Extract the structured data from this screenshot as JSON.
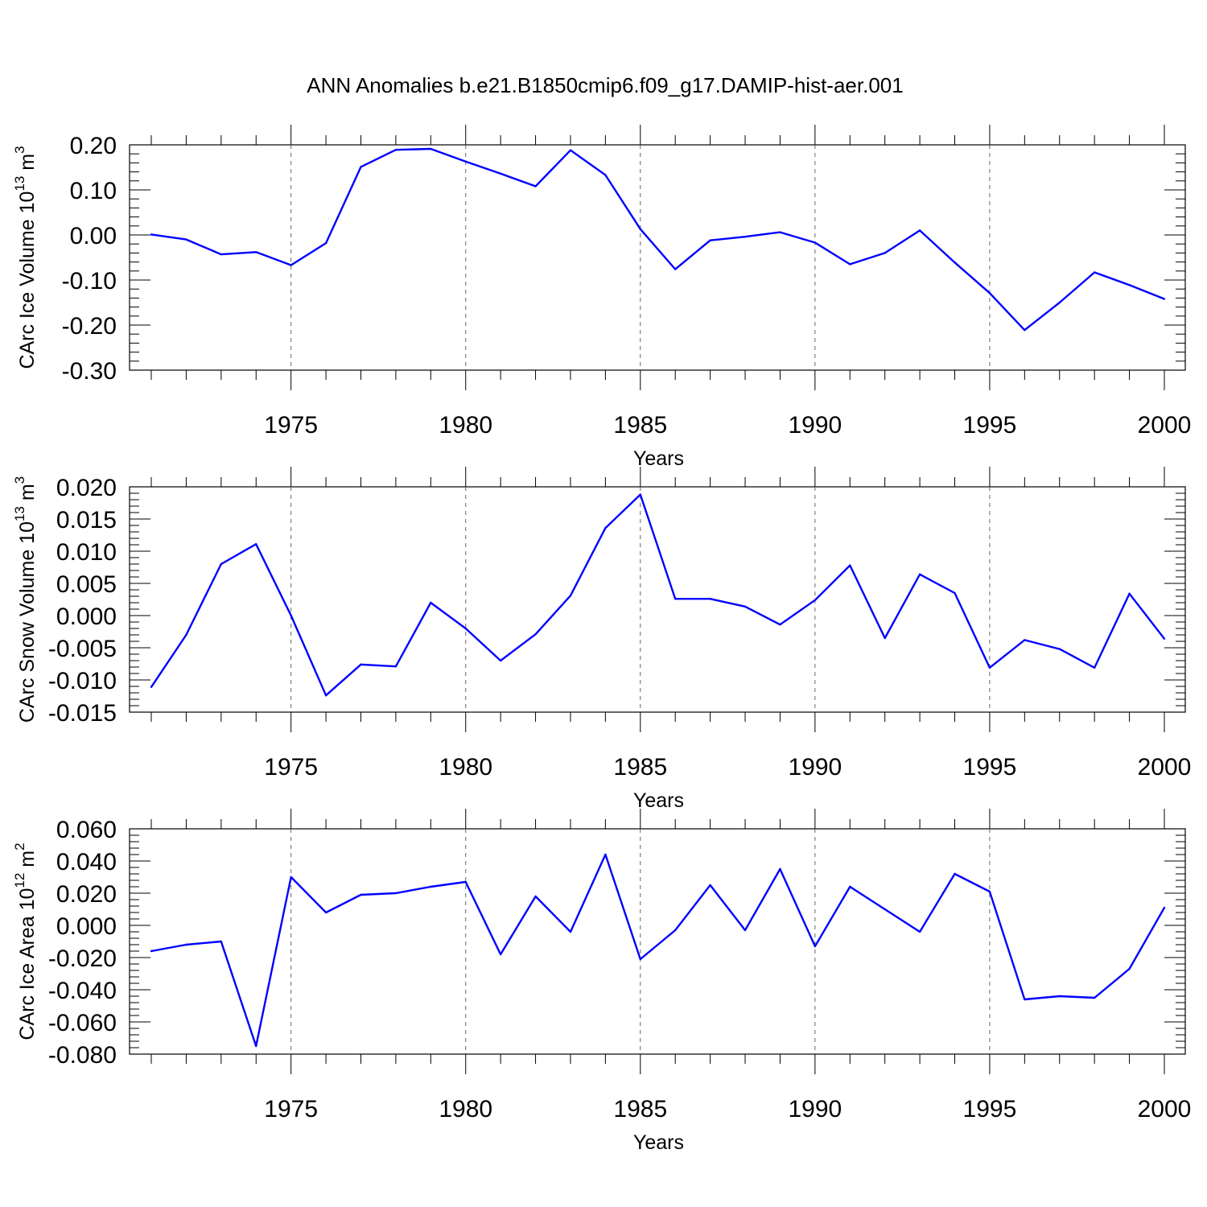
{
  "title": "ANN Anomalies b.e21.B1850cmip6.f09_g17.DAMIP-hist-aer.001",
  "line_color": "#0000ff",
  "chart_data": [
    {
      "type": "line",
      "ylabel": "CArc Ice Volume 10",
      "ylabel_exp": "13",
      "ylabel_unit": " m",
      "ylabel_unit_exp": "3",
      "xlabel": "Years",
      "xlim": [
        1971,
        2000
      ],
      "ylim": [
        -0.3,
        0.2
      ],
      "yticks": [
        0.2,
        0.1,
        0.0,
        -0.1,
        -0.2,
        -0.3
      ],
      "yticklabels": [
        "0.20",
        "0.10",
        "0.00",
        "-0.10",
        "-0.20",
        "-0.30"
      ],
      "xticks": [
        1975,
        1980,
        1985,
        1990,
        1995,
        2000
      ],
      "xticklabels": [
        "1975",
        "1980",
        "1985",
        "1990",
        "1995",
        "2000"
      ],
      "x": [
        1971,
        1972,
        1973,
        1974,
        1975,
        1976,
        1977,
        1978,
        1979,
        1980,
        1981,
        1982,
        1983,
        1984,
        1985,
        1986,
        1987,
        1988,
        1989,
        1990,
        1991,
        1992,
        1993,
        1994,
        1995,
        1996,
        1997,
        1998,
        1999,
        2000
      ],
      "values": [
        0.001,
        -0.01,
        -0.043,
        -0.038,
        -0.067,
        -0.018,
        0.151,
        0.189,
        0.191,
        0.163,
        0.136,
        0.108,
        0.188,
        0.133,
        0.013,
        -0.076,
        -0.012,
        -0.004,
        0.006,
        -0.017,
        -0.065,
        -0.04,
        0.01,
        -0.061,
        -0.129,
        -0.211,
        -0.15,
        -0.083,
        -0.111,
        -0.142
      ]
    },
    {
      "type": "line",
      "ylabel": "CArc Snow Volume 10",
      "ylabel_exp": "13",
      "ylabel_unit": " m",
      "ylabel_unit_exp": "3",
      "xlabel": "Years",
      "xlim": [
        1971,
        2000
      ],
      "ylim": [
        -0.015,
        0.02
      ],
      "yticks": [
        0.02,
        0.015,
        0.01,
        0.005,
        0.0,
        -0.005,
        -0.01,
        -0.015
      ],
      "yticklabels": [
        "0.020",
        "0.015",
        "0.010",
        "0.005",
        "0.000",
        "-0.005",
        "-0.010",
        "-0.015"
      ],
      "xticks": [
        1975,
        1980,
        1985,
        1990,
        1995,
        2000
      ],
      "xticklabels": [
        "1975",
        "1980",
        "1985",
        "1990",
        "1995",
        "2000"
      ],
      "x": [
        1971,
        1972,
        1973,
        1974,
        1975,
        1976,
        1977,
        1978,
        1979,
        1980,
        1981,
        1982,
        1983,
        1984,
        1985,
        1986,
        1987,
        1988,
        1989,
        1990,
        1991,
        1992,
        1993,
        1994,
        1995,
        1996,
        1997,
        1998,
        1999,
        2000
      ],
      "values": [
        -0.0111,
        -0.003,
        0.008,
        0.0111,
        0.0,
        -0.0124,
        -0.0076,
        -0.0079,
        0.002,
        -0.002,
        -0.007,
        -0.0029,
        0.0031,
        0.0136,
        0.0188,
        0.0026,
        0.0026,
        0.0014,
        -0.0014,
        0.0024,
        0.0078,
        -0.0035,
        0.0064,
        0.0035,
        -0.0081,
        -0.0038,
        -0.0052,
        -0.0081,
        0.0034,
        -0.0036
      ]
    },
    {
      "type": "line",
      "ylabel": "CArc Ice Area 10",
      "ylabel_exp": "12",
      "ylabel_unit": " m",
      "ylabel_unit_exp": "2",
      "xlabel": "Years",
      "xlim": [
        1971,
        2000
      ],
      "ylim": [
        -0.08,
        0.06
      ],
      "yticks": [
        0.06,
        0.04,
        0.02,
        0.0,
        -0.02,
        -0.04,
        -0.06,
        -0.08
      ],
      "yticklabels": [
        "0.060",
        "0.040",
        "0.020",
        "0.000",
        "-0.020",
        "-0.040",
        "-0.060",
        "-0.080"
      ],
      "xticks": [
        1975,
        1980,
        1985,
        1990,
        1995,
        2000
      ],
      "xticklabels": [
        "1975",
        "1980",
        "1985",
        "1990",
        "1995",
        "2000"
      ],
      "x": [
        1971,
        1972,
        1973,
        1974,
        1975,
        1976,
        1977,
        1978,
        1979,
        1980,
        1981,
        1982,
        1983,
        1984,
        1985,
        1986,
        1987,
        1988,
        1989,
        1990,
        1991,
        1992,
        1993,
        1994,
        1995,
        1996,
        1997,
        1998,
        1999,
        2000
      ],
      "values": [
        -0.016,
        -0.012,
        -0.01,
        -0.075,
        0.03,
        0.008,
        0.019,
        0.02,
        0.024,
        0.027,
        -0.018,
        0.018,
        -0.004,
        0.044,
        -0.021,
        -0.003,
        0.025,
        -0.003,
        0.035,
        -0.013,
        0.024,
        0.01,
        -0.004,
        0.032,
        0.021,
        -0.046,
        -0.044,
        -0.045,
        -0.027,
        0.011
      ]
    }
  ]
}
